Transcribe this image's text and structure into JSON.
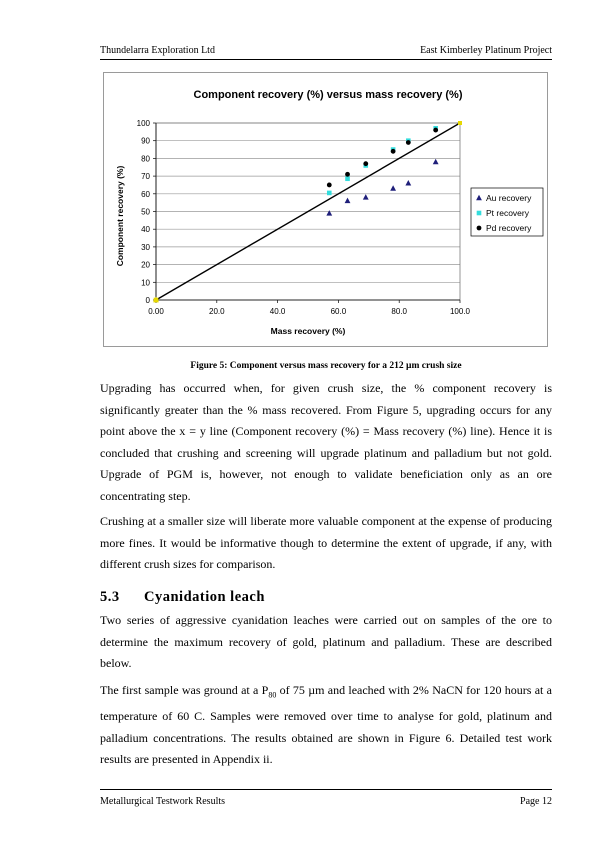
{
  "header": {
    "left": "Thundelarra Exploration Ltd",
    "right": "East Kimberley Platinum Project"
  },
  "chart_data": {
    "type": "scatter",
    "title": "Component recovery (%) versus mass recovery (%)",
    "xlabel": "Mass recovery (%)",
    "ylabel": "Component recovery (%)",
    "xlim": [
      0,
      100
    ],
    "ylim": [
      0,
      100
    ],
    "x_ticks": [
      "0.00",
      "20.0",
      "40.0",
      "60.0",
      "80.0",
      "100.0"
    ],
    "y_ticks": [
      "0",
      "10",
      "20",
      "30",
      "40",
      "50",
      "60",
      "70",
      "80",
      "90",
      "100"
    ],
    "grid": "horizontal",
    "legend_position": "right",
    "reference_line": {
      "from": [
        0,
        0
      ],
      "to": [
        100,
        100
      ],
      "color": "#000000"
    },
    "series": [
      {
        "name": "Au recovery",
        "marker": "triangle",
        "color": "#1f1f7a",
        "points": [
          [
            0,
            0
          ],
          [
            57,
            49
          ],
          [
            63,
            56
          ],
          [
            69,
            58
          ],
          [
            78,
            63
          ],
          [
            83,
            66
          ],
          [
            92,
            78
          ]
        ]
      },
      {
        "name": "Pt recovery",
        "marker": "square",
        "color": "#33dddd",
        "points": [
          [
            0,
            0
          ],
          [
            57,
            60.5
          ],
          [
            63,
            68.5
          ],
          [
            69,
            76
          ],
          [
            78,
            85
          ],
          [
            83,
            90
          ],
          [
            92,
            97
          ]
        ]
      },
      {
        "name": "Pd recovery",
        "marker": "circle",
        "color": "#000000",
        "points": [
          [
            0,
            0
          ],
          [
            57,
            65
          ],
          [
            63,
            71
          ],
          [
            69,
            77
          ],
          [
            78,
            84
          ],
          [
            83,
            89
          ],
          [
            92,
            96
          ]
        ]
      }
    ]
  },
  "caption": "Figure 5: Component versus mass recovery for a 212 µm crush size",
  "paragraphs": {
    "p1": "Upgrading has occurred when, for given crush size, the % component recovery is significantly greater than the % mass recovered. From Figure 5, upgrading occurs for any point above the x = y line (Component recovery (%) = Mass recovery (%) line). Hence it is concluded that crushing and screening will upgrade platinum and palladium but not gold. Upgrade of PGM is, however, not enough to validate beneficiation only as an ore concentrating step.",
    "p2": "Crushing at a smaller size will liberate more valuable component at the expense of producing more fines. It would be informative though to determine the extent of upgrade, if any, with different crush sizes for comparison.",
    "p3": "Two series of aggressive cyanidation leaches were carried out on samples of the ore to determine the maximum recovery of gold, platinum and palladium. These are described below.",
    "p4_before": "The first sample was ground at a P",
    "p4_sub": "80",
    "p4_after": " of 75 µm and leached with 2% NaCN for 120 hours at a temperature of 60 C. Samples were removed over time to analyse for gold, platinum and palladium concentrations. The results obtained are shown in Figure 6. Detailed test work results are presented in Appendix ii."
  },
  "section": {
    "number": "5.3",
    "title": "Cyanidation leach"
  },
  "footer": {
    "left": "Metallurgical Testwork Results",
    "right": "Page 12"
  }
}
